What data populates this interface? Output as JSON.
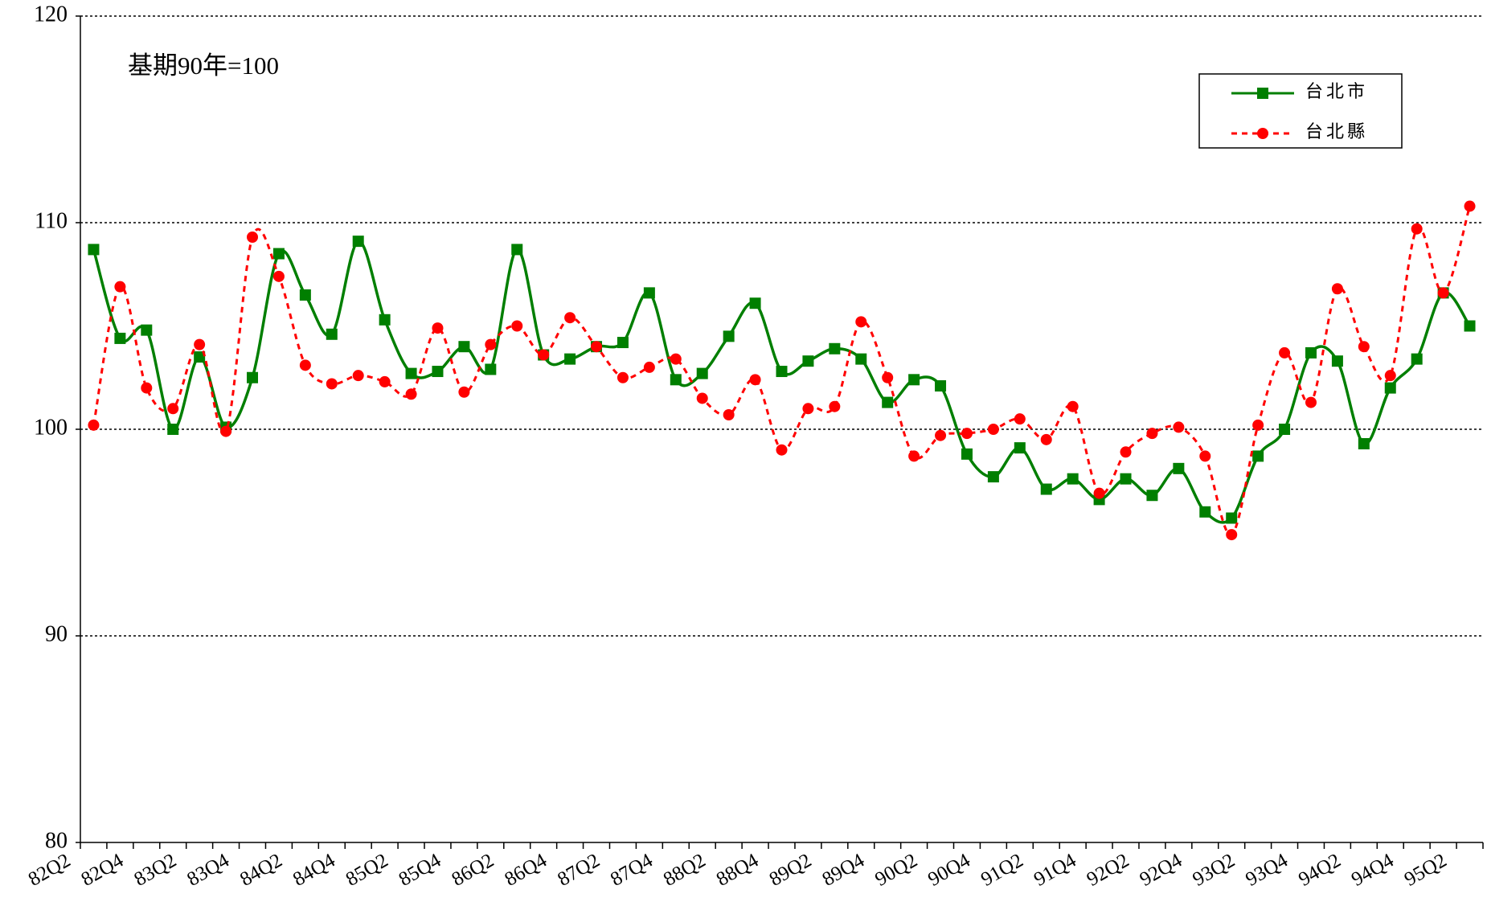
{
  "chart_data": {
    "type": "line",
    "annotation": "基期90年=100",
    "categories": [
      "82Q2",
      null,
      "82Q4",
      null,
      "83Q2",
      null,
      "83Q4",
      null,
      "84Q2",
      null,
      "84Q4",
      null,
      "85Q2",
      null,
      "85Q4",
      null,
      "86Q2",
      null,
      "86Q4",
      null,
      "87Q2",
      null,
      "87Q4",
      null,
      "88Q2",
      null,
      "88Q4",
      null,
      "89Q2",
      null,
      "89Q4",
      null,
      "90Q2",
      null,
      "90Q4",
      null,
      "91Q2",
      null,
      "91Q4",
      null,
      "92Q2",
      null,
      "92Q4",
      null,
      "93Q2",
      null,
      "93Q4",
      null,
      "94Q2",
      null,
      "94Q4",
      null,
      "95Q2"
    ],
    "series": [
      {
        "name": "台北市",
        "color": "#007f00",
        "marker": "square",
        "dashed": false,
        "values": [
          108.7,
          104.4,
          104.8,
          100.0,
          103.5,
          100.1,
          102.5,
          108.5,
          106.5,
          104.6,
          109.1,
          105.3,
          102.7,
          102.8,
          104.0,
          102.9,
          108.7,
          103.6,
          103.4,
          104.0,
          104.2,
          106.6,
          102.4,
          102.7,
          104.5,
          106.1,
          102.8,
          103.3,
          103.9,
          103.4,
          101.3,
          102.4,
          102.1,
          98.8,
          97.7,
          99.1,
          97.1,
          97.6,
          96.6,
          97.6,
          96.8,
          98.1,
          96.0,
          95.7,
          98.7,
          100.0,
          103.7,
          103.3,
          99.3,
          102.0,
          103.4,
          106.6,
          105.0
        ]
      },
      {
        "name": "台北縣",
        "color": "#ff0000",
        "marker": "circle",
        "dashed": true,
        "values": [
          100.2,
          106.9,
          102.0,
          101.0,
          104.1,
          99.9,
          109.3,
          107.4,
          103.1,
          102.2,
          102.6,
          102.3,
          101.7,
          104.9,
          101.8,
          104.1,
          105.0,
          103.6,
          105.4,
          104.0,
          102.5,
          103.0,
          103.4,
          101.5,
          100.7,
          102.4,
          99.0,
          101.0,
          101.1,
          105.2,
          102.5,
          98.7,
          99.7,
          99.8,
          100.0,
          100.5,
          99.5,
          101.1,
          96.9,
          98.9,
          99.8,
          100.1,
          98.7,
          94.9,
          100.2,
          103.7,
          101.3,
          106.8,
          104.0,
          102.6,
          109.7,
          106.6,
          110.8
        ]
      }
    ],
    "ylim": [
      80,
      120
    ],
    "yticks": [
      80,
      90,
      100,
      110,
      120
    ],
    "grid": true,
    "legend": "top-right"
  }
}
